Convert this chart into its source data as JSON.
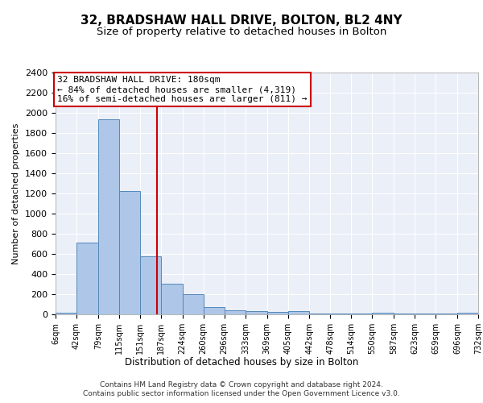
{
  "title_line1": "32, BRADSHAW HALL DRIVE, BOLTON, BL2 4NY",
  "title_line2": "Size of property relative to detached houses in Bolton",
  "xlabel": "Distribution of detached houses by size in Bolton",
  "ylabel": "Number of detached properties",
  "footer_line1": "Contains HM Land Registry data © Crown copyright and database right 2024.",
  "footer_line2": "Contains public sector information licensed under the Open Government Licence v3.0.",
  "annotation_line1": "32 BRADSHAW HALL DRIVE: 180sqm",
  "annotation_line2": "← 84% of detached houses are smaller (4,319)",
  "annotation_line3": "16% of semi-detached houses are larger (811) →",
  "bar_edges": [
    6,
    42,
    79,
    115,
    151,
    187,
    224,
    260,
    296,
    333,
    369,
    405,
    442,
    478,
    514,
    550,
    587,
    623,
    659,
    696,
    732
  ],
  "bar_heights": [
    15,
    710,
    1935,
    1225,
    575,
    305,
    200,
    75,
    40,
    30,
    25,
    30,
    5,
    5,
    5,
    15,
    5,
    5,
    5,
    15
  ],
  "bar_facecolor": "#aec6e8",
  "bar_edgecolor": "#5588bb",
  "property_line_x": 180,
  "property_line_color": "#cc0000",
  "ylim": [
    0,
    2400
  ],
  "yticks": [
    0,
    200,
    400,
    600,
    800,
    1000,
    1200,
    1400,
    1600,
    1800,
    2000,
    2200,
    2400
  ],
  "background_color": "#eaeff8",
  "grid_color": "#ffffff",
  "title1_fontsize": 11,
  "title2_fontsize": 9.5,
  "annotation_fontsize": 8,
  "tick_labels": [
    "6sqm",
    "42sqm",
    "79sqm",
    "115sqm",
    "151sqm",
    "187sqm",
    "224sqm",
    "260sqm",
    "296sqm",
    "333sqm",
    "369sqm",
    "405sqm",
    "442sqm",
    "478sqm",
    "514sqm",
    "550sqm",
    "587sqm",
    "623sqm",
    "659sqm",
    "696sqm",
    "732sqm"
  ]
}
